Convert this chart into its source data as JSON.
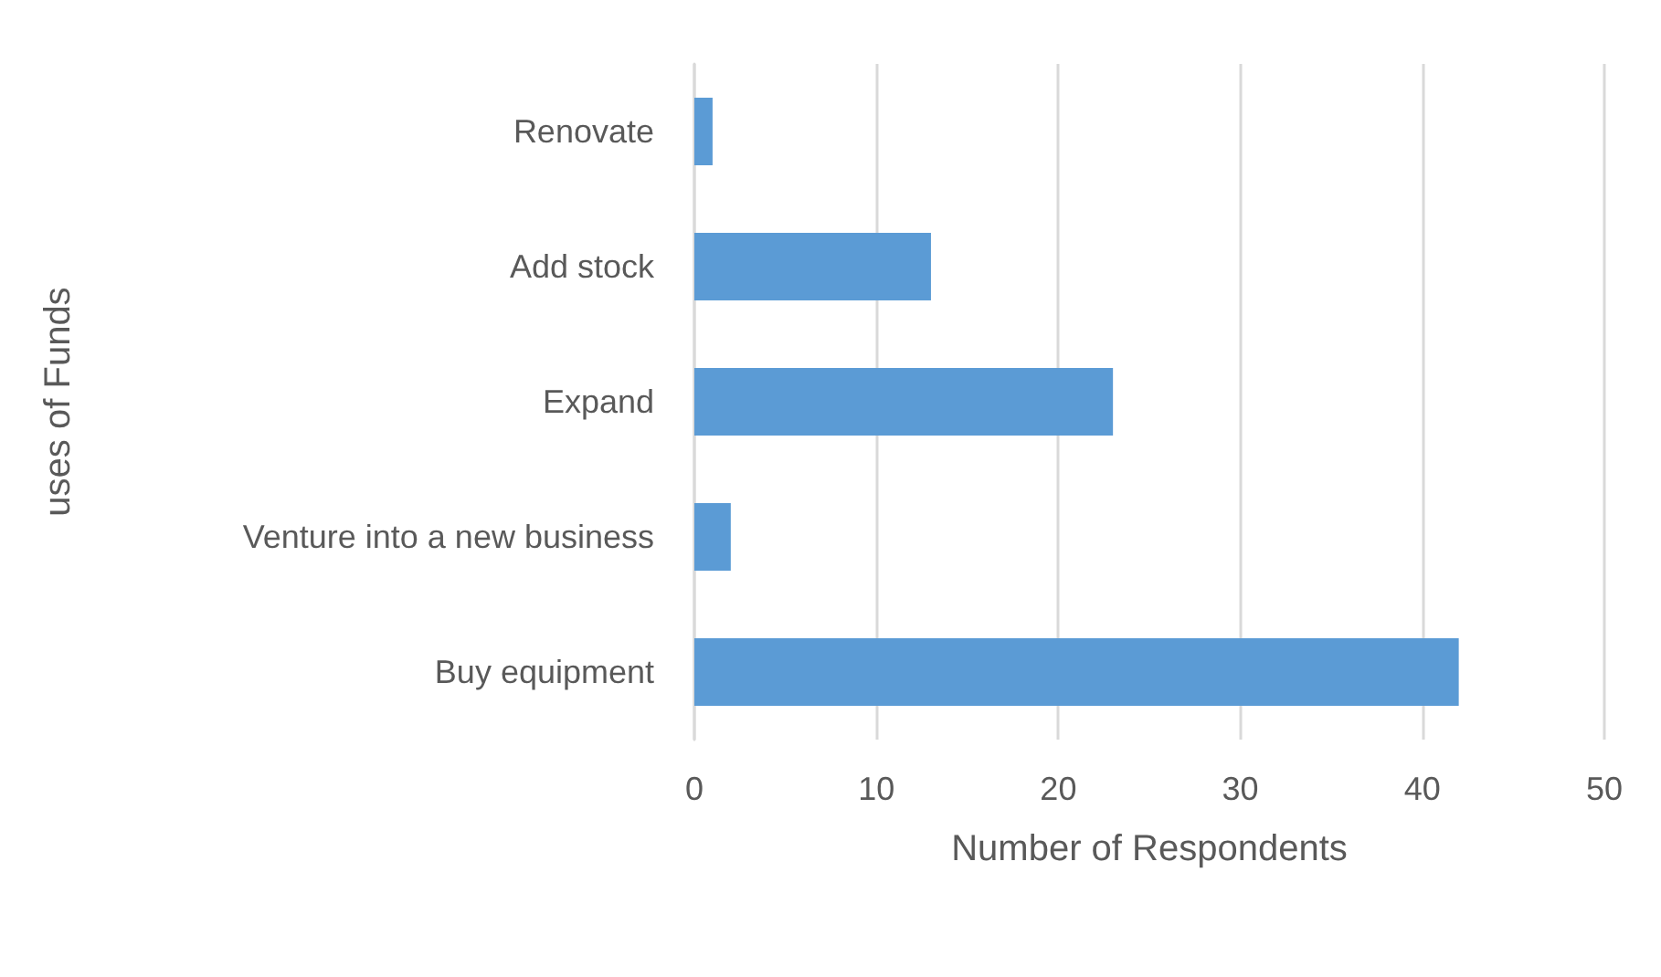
{
  "chart_data": {
    "type": "bar",
    "orientation": "horizontal",
    "xlabel": "Number of Respondents",
    "ylabel": "uses of Funds",
    "categories": [
      "Renovate",
      "Add stock",
      "Expand",
      "Venture into a new business",
      "Buy equipment"
    ],
    "values": [
      1,
      13,
      23,
      2,
      42
    ],
    "color": "#5b9bd5",
    "xlim": [
      0,
      50
    ],
    "xticks": [
      0,
      10,
      20,
      30,
      40,
      50
    ],
    "grid": "x"
  }
}
